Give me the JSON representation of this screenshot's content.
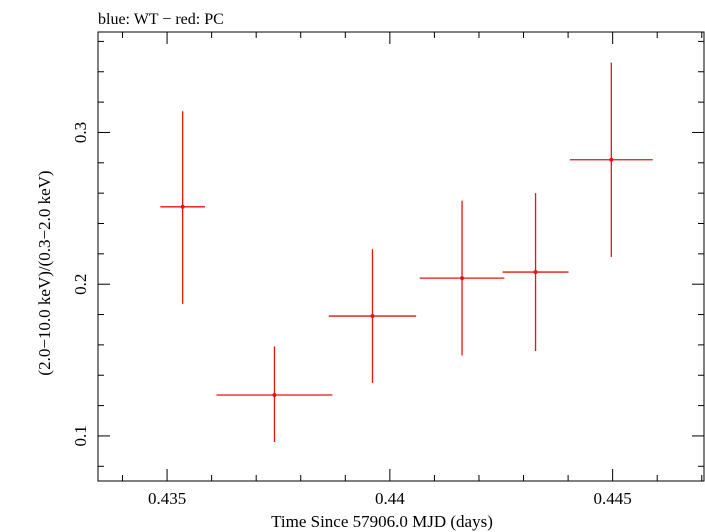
{
  "chart_data": {
    "type": "scatter",
    "title": "blue: WT − red: PC",
    "xlabel": "Time Since 57906.0 MJD (days)",
    "ylabel": "(2.0−10.0 keV)/(0.3−2.0 keV)",
    "xlim": [
      0.43345,
      0.44705
    ],
    "ylim": [
      0.0703,
      0.3662
    ],
    "x_ticks": [
      0.435,
      0.44,
      0.445
    ],
    "x_tick_labels": [
      "0.435",
      "0.44",
      "0.445"
    ],
    "y_ticks": [
      0.1,
      0.2,
      0.3
    ],
    "y_tick_labels": [
      "0.1",
      "0.2",
      "0.3"
    ],
    "series": [
      {
        "name": "PC",
        "color": "#e8130f",
        "points": [
          {
            "x": 0.43535,
            "xlo": 0.43485,
            "xhi": 0.43585,
            "y": 0.251,
            "ylo": 0.187,
            "yhi": 0.314
          },
          {
            "x": 0.43741,
            "xlo": 0.43611,
            "xhi": 0.43871,
            "y": 0.127,
            "ylo": 0.096,
            "yhi": 0.159
          },
          {
            "x": 0.43961,
            "xlo": 0.43863,
            "xhi": 0.44059,
            "y": 0.179,
            "ylo": 0.135,
            "yhi": 0.223
          },
          {
            "x": 0.44162,
            "xlo": 0.44067,
            "xhi": 0.44257,
            "y": 0.204,
            "ylo": 0.153,
            "yhi": 0.255
          },
          {
            "x": 0.44327,
            "xlo": 0.44253,
            "xhi": 0.44401,
            "y": 0.208,
            "ylo": 0.156,
            "yhi": 0.26
          },
          {
            "x": 0.44497,
            "xlo": 0.44404,
            "xhi": 0.4459,
            "y": 0.282,
            "ylo": 0.218,
            "yhi": 0.346
          }
        ]
      }
    ]
  }
}
